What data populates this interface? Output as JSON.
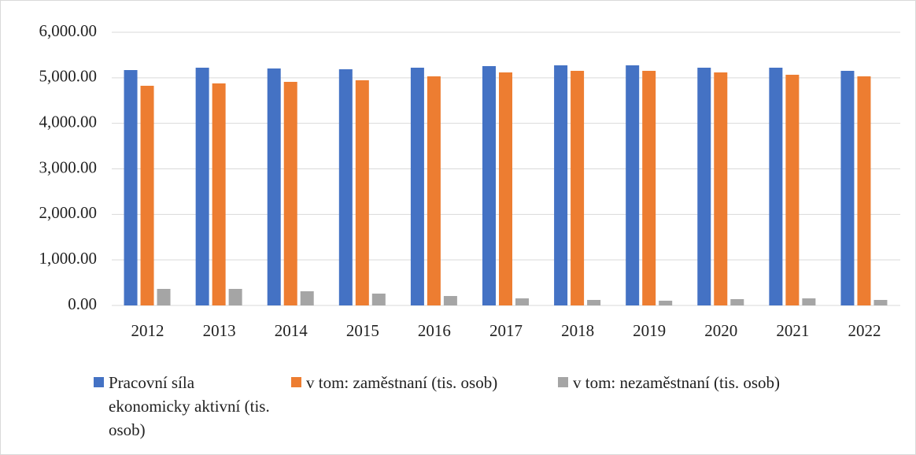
{
  "chart_data": {
    "type": "bar",
    "categories": [
      "2012",
      "2013",
      "2014",
      "2015",
      "2016",
      "2017",
      "2018",
      "2019",
      "2020",
      "2021",
      "2022"
    ],
    "series": [
      {
        "name": "Pracovní síla ekonomicky aktivní (tis. osob)",
        "color": "#4472c4",
        "values": [
          5170,
          5222,
          5205,
          5188,
          5222,
          5257,
          5274,
          5274,
          5222,
          5222,
          5153
        ]
      },
      {
        "name": "v tom: zaměstnaní (tis. osob)",
        "color": "#ed7d31",
        "values": [
          4825,
          4877,
          4911,
          4946,
          5032,
          5118,
          5153,
          5153,
          5118,
          5067,
          5032
        ]
      },
      {
        "name": "v tom: nezaměstnaní (tis. osob)",
        "color": "#a5a5a5",
        "values": [
          363,
          363,
          311,
          260,
          207,
          155,
          121,
          104,
          138,
          155,
          121
        ]
      }
    ],
    "ylim": [
      0,
      6000
    ],
    "yticks": [
      {
        "value": 0,
        "label": "0.00"
      },
      {
        "value": 1000,
        "label": "1,000.00"
      },
      {
        "value": 2000,
        "label": "2,000.00"
      },
      {
        "value": 3000,
        "label": "3,000.00"
      },
      {
        "value": 4000,
        "label": "4,000.00"
      },
      {
        "value": 5000,
        "label": "5,000.00"
      },
      {
        "value": 6000,
        "label": "6,000.00"
      }
    ],
    "grid": true,
    "legend": "bottom"
  }
}
